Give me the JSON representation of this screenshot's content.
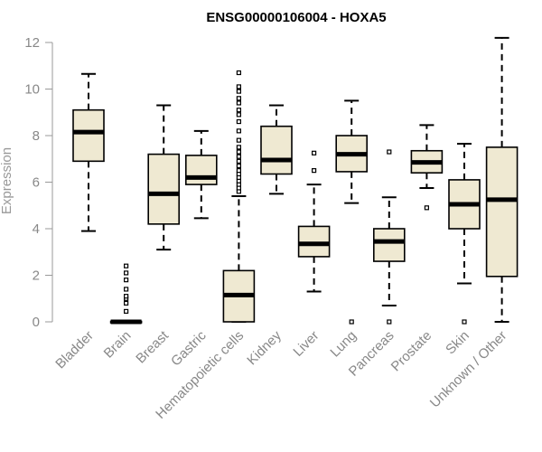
{
  "chart_data": {
    "type": "boxplot",
    "title": "ENSG00000106004 - HOXA5",
    "xlabel": "",
    "ylabel": "Expression",
    "ylim": [
      0,
      12
    ],
    "yticks": [
      0,
      2,
      4,
      6,
      8,
      10,
      12
    ],
    "box_fill": "#efe9d2",
    "box_stroke": "#000000",
    "categories": [
      "Bladder",
      "Brain",
      "Breast",
      "Gastric",
      "Hematopoietic cells",
      "Kidney",
      "Liver",
      "Lung",
      "Pancreas",
      "Prostate",
      "Skin",
      "Unknown / Other"
    ],
    "boxes": [
      {
        "whisker_low": 3.9,
        "q1": 6.9,
        "median": 8.15,
        "q3": 9.1,
        "whisker_high": 10.65,
        "outliers": []
      },
      {
        "whisker_low": 0.0,
        "q1": 0.0,
        "median": 0.0,
        "q3": 0.02,
        "whisker_high": 0.05,
        "outliers": [
          0.45,
          0.8,
          1.0,
          1.1,
          1.4,
          1.8,
          2.1,
          2.4
        ]
      },
      {
        "whisker_low": 3.1,
        "q1": 4.2,
        "median": 5.5,
        "q3": 7.2,
        "whisker_high": 9.3,
        "outliers": []
      },
      {
        "whisker_low": 4.45,
        "q1": 5.9,
        "median": 6.2,
        "q3": 7.15,
        "whisker_high": 8.2,
        "outliers": []
      },
      {
        "whisker_low": 0.0,
        "q1": 0.0,
        "median": 1.15,
        "q3": 2.2,
        "whisker_high": 5.4,
        "outliers": [
          5.6,
          5.75,
          5.9,
          6.05,
          6.2,
          6.35,
          6.5,
          6.7,
          6.9,
          7.1,
          7.3,
          7.5,
          7.8,
          8.2,
          8.6,
          8.9,
          9.1,
          9.4,
          9.6,
          9.9,
          10.1,
          10.7
        ]
      },
      {
        "whisker_low": 5.5,
        "q1": 6.35,
        "median": 6.95,
        "q3": 8.4,
        "whisker_high": 9.3,
        "outliers": []
      },
      {
        "whisker_low": 1.3,
        "q1": 2.8,
        "median": 3.35,
        "q3": 4.1,
        "whisker_high": 5.9,
        "outliers": [
          6.5,
          7.25
        ]
      },
      {
        "whisker_low": 5.1,
        "q1": 6.45,
        "median": 7.2,
        "q3": 8.0,
        "whisker_high": 9.5,
        "outliers": [
          0.0
        ]
      },
      {
        "whisker_low": 0.7,
        "q1": 2.6,
        "median": 3.45,
        "q3": 4.0,
        "whisker_high": 5.35,
        "outliers": [
          0.0,
          7.3
        ]
      },
      {
        "whisker_low": 5.75,
        "q1": 6.4,
        "median": 6.85,
        "q3": 7.35,
        "whisker_high": 8.45,
        "outliers": [
          4.9
        ]
      },
      {
        "whisker_low": 1.65,
        "q1": 4.0,
        "median": 5.05,
        "q3": 6.1,
        "whisker_high": 7.65,
        "outliers": [
          0.0
        ]
      },
      {
        "whisker_low": 0.0,
        "q1": 1.95,
        "median": 5.25,
        "q3": 7.5,
        "whisker_high": 12.2,
        "outliers": []
      }
    ]
  }
}
